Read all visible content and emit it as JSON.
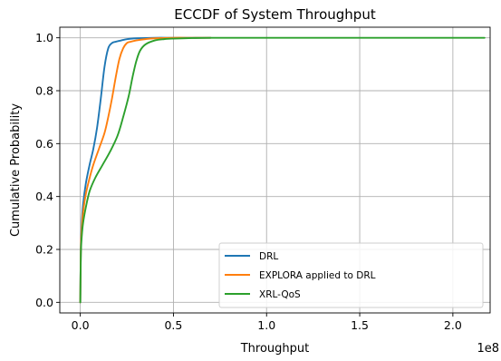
{
  "chart_data": {
    "type": "line",
    "title": "ECCDF of System Throughput",
    "xlabel": "Throughput",
    "ylabel": "Cumulative Probability",
    "x_offset_label": "1e8",
    "xlim": [
      -0.11,
      2.2
    ],
    "ylim": [
      -0.04,
      1.04
    ],
    "xticks": [
      0.0,
      0.5,
      1.0,
      1.5,
      2.0
    ],
    "xtick_labels": [
      "0.0",
      "0.5",
      "1.0",
      "1.5",
      "2.0"
    ],
    "yticks": [
      0.0,
      0.2,
      0.4,
      0.6,
      0.8,
      1.0
    ],
    "ytick_labels": [
      "0.0",
      "0.2",
      "0.4",
      "0.6",
      "0.8",
      "1.0"
    ],
    "grid": true,
    "legend_position": "lower-right",
    "series": [
      {
        "name": "DRL",
        "color": "#1f77b4",
        "x": [
          0.0,
          0.003,
          0.008,
          0.015,
          0.03,
          0.05,
          0.07,
          0.09,
          0.11,
          0.13,
          0.15,
          0.17,
          0.19,
          0.22,
          0.25,
          0.3,
          0.4,
          0.5,
          0.6,
          0.7
        ],
        "y": [
          0.0,
          0.2,
          0.3,
          0.37,
          0.45,
          0.52,
          0.58,
          0.66,
          0.77,
          0.89,
          0.96,
          0.98,
          0.985,
          0.99,
          0.995,
          0.998,
          1.0,
          1.0,
          1.0,
          1.0
        ]
      },
      {
        "name": "EXPLORA applied to DRL",
        "color": "#ff7f0e",
        "x": [
          0.0,
          0.003,
          0.008,
          0.015,
          0.03,
          0.05,
          0.07,
          0.1,
          0.13,
          0.15,
          0.17,
          0.19,
          0.21,
          0.23,
          0.25,
          0.27,
          0.3,
          0.35,
          0.4,
          0.5,
          0.6,
          0.7
        ],
        "y": [
          0.0,
          0.2,
          0.28,
          0.34,
          0.41,
          0.47,
          0.52,
          0.58,
          0.64,
          0.7,
          0.77,
          0.85,
          0.92,
          0.96,
          0.98,
          0.985,
          0.99,
          0.995,
          0.998,
          1.0,
          1.0,
          1.0
        ]
      },
      {
        "name": "XRL-QoS",
        "color": "#2ca02c",
        "x": [
          0.0,
          0.003,
          0.008,
          0.015,
          0.03,
          0.05,
          0.08,
          0.12,
          0.16,
          0.2,
          0.23,
          0.26,
          0.28,
          0.3,
          0.32,
          0.35,
          0.4,
          0.45,
          0.5,
          0.6,
          0.7,
          1.0,
          1.5,
          2.17
        ],
        "y": [
          0.0,
          0.18,
          0.25,
          0.3,
          0.36,
          0.42,
          0.47,
          0.52,
          0.57,
          0.63,
          0.7,
          0.78,
          0.85,
          0.91,
          0.95,
          0.975,
          0.99,
          0.995,
          0.997,
          0.999,
          1.0,
          1.0,
          1.0,
          1.0
        ]
      }
    ]
  }
}
